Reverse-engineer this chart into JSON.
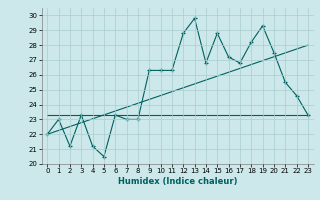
{
  "title": "",
  "xlabel": "Humidex (Indice chaleur)",
  "ylabel": "",
  "bg_color": "#cce8ea",
  "line_color": "#006060",
  "xlim": [
    -0.5,
    23.5
  ],
  "ylim": [
    20,
    30.5
  ],
  "xticks": [
    0,
    1,
    2,
    3,
    4,
    5,
    6,
    7,
    8,
    9,
    10,
    11,
    12,
    13,
    14,
    15,
    16,
    17,
    18,
    19,
    20,
    21,
    22,
    23
  ],
  "yticks": [
    20,
    21,
    22,
    23,
    24,
    25,
    26,
    27,
    28,
    29,
    30
  ],
  "line1_x": [
    0,
    1,
    2,
    3,
    4,
    5,
    6,
    7,
    8,
    9,
    10,
    11,
    12,
    13,
    14,
    15,
    16,
    17,
    18,
    19,
    20,
    21,
    22,
    23
  ],
  "line1_y": [
    22,
    23,
    21.2,
    23.3,
    21.2,
    20.5,
    23.3,
    23,
    23,
    26.3,
    26.3,
    26.3,
    28.8,
    29.8,
    26.8,
    28.8,
    27.2,
    26.8,
    28.2,
    29.3,
    27.5,
    25.5,
    24.6,
    23.3
  ],
  "line2_x": [
    0,
    23
  ],
  "line2_y": [
    23.3,
    23.3
  ],
  "line3_x": [
    0,
    23
  ],
  "line3_y": [
    22.0,
    28.0
  ],
  "grid_color": "#aacdd0",
  "spine_color": "#808080"
}
